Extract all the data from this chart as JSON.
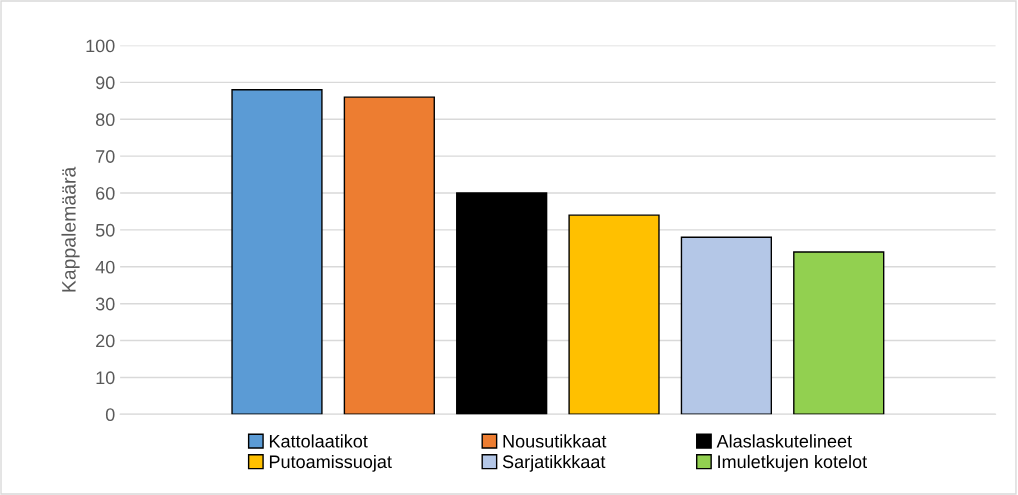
{
  "chart_data": {
    "type": "bar",
    "ylabel": "Kappalemäärä",
    "categories": [
      null
    ],
    "series": [
      {
        "name": "Kattolaatikot",
        "color": "#5b9bd5",
        "values": [
          88
        ]
      },
      {
        "name": "Nousutikkaat",
        "color": "#ed7d31",
        "values": [
          86
        ]
      },
      {
        "name": "Alaslaskutelineet",
        "color": "#000000",
        "values": [
          60
        ]
      },
      {
        "name": "Putoamissuojat",
        "color": "#ffc000",
        "values": [
          54
        ]
      },
      {
        "name": "Sarjatikkkaat",
        "color": "#b4c7e7",
        "values": [
          48
        ]
      },
      {
        "name": "Imuletkujen kotelot",
        "color": "#92d050",
        "values": [
          44
        ]
      }
    ],
    "ylim": [
      0,
      100
    ],
    "yticks": [
      0,
      10,
      20,
      30,
      40,
      50,
      60,
      70,
      80,
      90,
      100
    ],
    "grid": "y",
    "legend": "bottom"
  }
}
